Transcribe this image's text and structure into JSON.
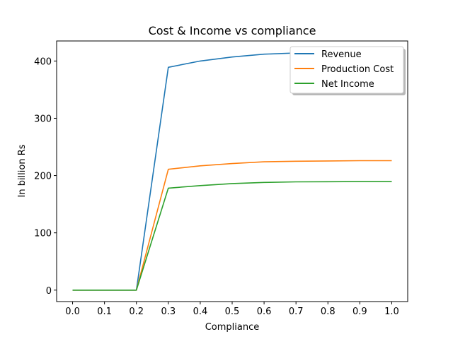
{
  "chart_data": {
    "type": "line",
    "title": "Cost & Income vs compliance",
    "xlabel": "Compliance",
    "ylabel": "In billion Rs",
    "x": [
      0.0,
      0.1,
      0.2,
      0.3,
      0.4,
      0.5,
      0.6,
      0.7,
      0.8,
      0.9,
      1.0
    ],
    "xlim": [
      -0.05,
      1.05
    ],
    "ylim": [
      -20,
      435
    ],
    "xticks": [
      "0.0",
      "0.1",
      "0.2",
      "0.3",
      "0.4",
      "0.5",
      "0.6",
      "0.7",
      "0.8",
      "0.9",
      "1.0"
    ],
    "yticks": [
      "0",
      "100",
      "200",
      "300",
      "400"
    ],
    "ytick_values": [
      0,
      100,
      200,
      300,
      400
    ],
    "legend_position": "upper right",
    "grid": false,
    "series": [
      {
        "name": "Revenue",
        "color": "#1f77b4",
        "values": [
          0,
          0,
          0,
          389,
          400,
          407,
          412,
          414,
          415,
          415,
          415
        ]
      },
      {
        "name": "Production Cost",
        "color": "#ff7f0e",
        "values": [
          0,
          0,
          0,
          211,
          217,
          221,
          224,
          225,
          225.5,
          226,
          226
        ]
      },
      {
        "name": "Net Income",
        "color": "#2ca02c",
        "values": [
          0,
          0,
          0,
          178,
          182.5,
          186,
          188,
          189,
          189.3,
          189.5,
          189.5
        ]
      }
    ]
  }
}
